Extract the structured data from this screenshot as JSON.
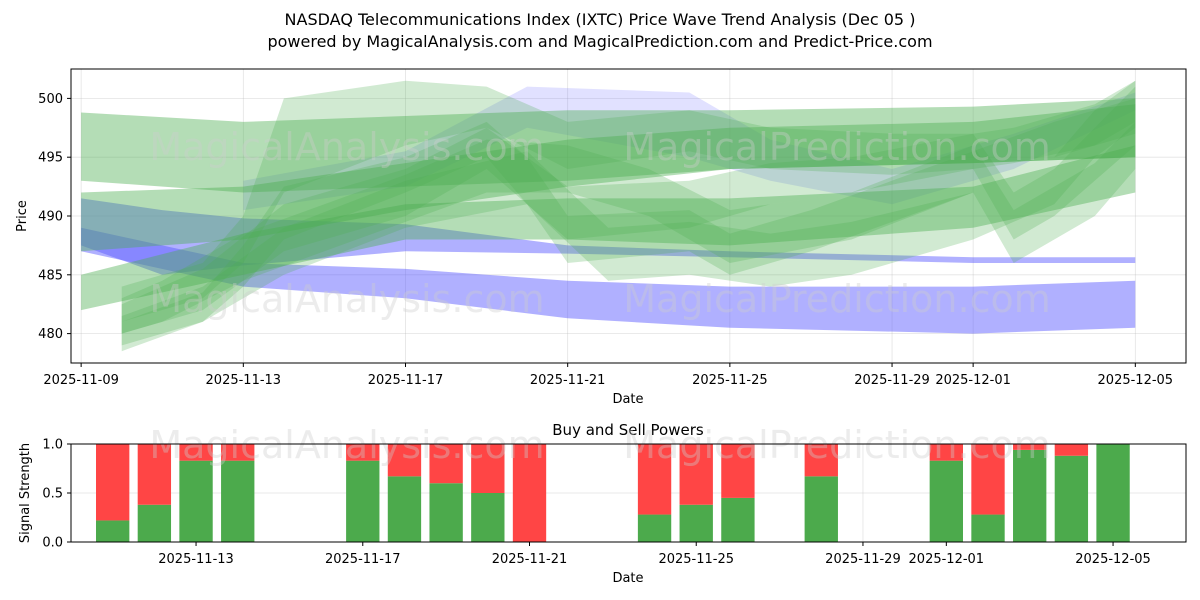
{
  "title_line1": "NASDAQ Telecommunications Index (IXTC) Price Wave Trend Analysis (Dec 05 )",
  "title_line2": "powered by MagicalAnalysis.com and MagicalPrediction.com and Predict-Price.com",
  "watermarks": [
    "MagicalAnalysis.com",
    "MagicalPrediction.com"
  ],
  "colors": {
    "green": "#4caf50",
    "red": "#ff4444",
    "blue": "#5a5aff",
    "buy": "#4caa4c",
    "sell": "#ff4545"
  },
  "chart_data": [
    {
      "type": "area",
      "title": "",
      "xlabel": "Date",
      "ylabel": "Price",
      "xlim": [
        "2025-11-08T18:00",
        "2025-12-06T06:00"
      ],
      "ylim": [
        477.5,
        502.5
      ],
      "y_ticks": [
        480,
        485,
        490,
        495,
        500
      ],
      "x_ticks": [
        "2025-11-09",
        "2025-11-13",
        "2025-11-17",
        "2025-11-21",
        "2025-11-25",
        "2025-11-29",
        "2025-12-01",
        "2025-12-05"
      ],
      "grid": true,
      "series": [
        {
          "name": "blue-band-upper",
          "color": "blue",
          "x": [
            "2025-11-09",
            "2025-11-11",
            "2025-11-13",
            "2025-11-17",
            "2025-11-21",
            "2025-11-25",
            "2025-12-01",
            "2025-12-05"
          ],
          "low": [
            487.5,
            485.0,
            485.8,
            487.0,
            486.8,
            486.5,
            486.0,
            486.0
          ],
          "high": [
            491.5,
            490.5,
            489.8,
            489.3,
            487.5,
            487.0,
            486.5,
            486.5
          ]
        },
        {
          "name": "blue-band-lower",
          "color": "blue",
          "x": [
            "2025-11-09",
            "2025-11-13",
            "2025-11-17",
            "2025-11-21",
            "2025-11-25",
            "2025-12-01",
            "2025-12-05"
          ],
          "low": [
            487.0,
            484.0,
            483.0,
            481.3,
            480.5,
            480.0,
            480.5
          ],
          "high": [
            489.0,
            486.0,
            485.5,
            484.5,
            484.0,
            484.0,
            484.5
          ]
        },
        {
          "name": "blue-band-upper-transparent",
          "color": "blue",
          "x": [
            "2025-11-13",
            "2025-11-17",
            "2025-11-20",
            "2025-11-24",
            "2025-11-26",
            "2025-11-29",
            "2025-12-02",
            "2025-12-05"
          ],
          "low": [
            490.5,
            492.5,
            497.5,
            495.0,
            493.0,
            491.0,
            494.0,
            499.0
          ],
          "high": [
            493.0,
            495.5,
            501.0,
            500.5,
            496.5,
            494.0,
            497.0,
            500.5
          ]
        },
        {
          "name": "green-band-wide-1",
          "color": "green",
          "x": [
            "2025-11-09",
            "2025-11-13",
            "2025-11-17",
            "2025-11-21",
            "2025-11-25",
            "2025-12-01",
            "2025-12-05"
          ],
          "low": [
            493.0,
            492.0,
            492.5,
            493.0,
            494.0,
            494.5,
            495.0
          ],
          "high": [
            498.8,
            498.0,
            498.5,
            499.0,
            499.0,
            499.3,
            500.0
          ]
        },
        {
          "name": "green-band-wide-2",
          "color": "green",
          "x": [
            "2025-11-09",
            "2025-11-13",
            "2025-11-17",
            "2025-11-21",
            "2025-11-25",
            "2025-12-01",
            "2025-12-05"
          ],
          "low": [
            487.0,
            488.0,
            490.5,
            492.5,
            494.0,
            494.5,
            495.0
          ],
          "high": [
            492.0,
            492.5,
            494.5,
            496.5,
            497.5,
            498.0,
            499.5
          ]
        },
        {
          "name": "green-band-wide-3",
          "color": "green",
          "x": [
            "2025-11-09",
            "2025-11-13",
            "2025-11-17",
            "2025-11-21",
            "2025-11-25",
            "2025-12-01",
            "2025-12-05"
          ],
          "low": [
            482.0,
            485.0,
            488.0,
            488.0,
            487.5,
            489.0,
            492.0
          ],
          "high": [
            485.0,
            488.5,
            491.0,
            491.5,
            491.5,
            492.5,
            496.0
          ]
        },
        {
          "name": "green-wave-1",
          "color": "green",
          "x": [
            "2025-11-10",
            "2025-11-12",
            "2025-11-13",
            "2025-11-14",
            "2025-11-17",
            "2025-11-19",
            "2025-11-20",
            "2025-11-21",
            "2025-11-24",
            "2025-11-25",
            "2025-11-27",
            "2025-12-01",
            "2025-12-03",
            "2025-12-05"
          ],
          "low": [
            479.0,
            481.0,
            484.0,
            488.0,
            492.0,
            495.0,
            491.0,
            486.0,
            487.0,
            485.0,
            487.0,
            492.0,
            495.0,
            497.0
          ],
          "high": [
            481.0,
            483.5,
            487.5,
            492.5,
            495.0,
            498.0,
            495.0,
            490.0,
            490.5,
            488.5,
            490.5,
            495.5,
            498.0,
            500.0
          ]
        },
        {
          "name": "green-wave-2",
          "color": "green",
          "x": [
            "2025-11-10",
            "2025-11-12",
            "2025-11-14",
            "2025-11-17",
            "2025-11-19",
            "2025-11-21",
            "2025-11-24",
            "2025-11-26",
            "2025-11-28",
            "2025-12-01",
            "2025-12-02",
            "2025-12-04",
            "2025-12-05"
          ],
          "low": [
            480.0,
            482.0,
            487.0,
            490.0,
            494.0,
            488.0,
            489.0,
            491.0,
            492.0,
            494.0,
            494.5,
            496.0,
            498.0
          ],
          "high": [
            482.5,
            485.5,
            491.0,
            494.0,
            497.5,
            492.5,
            493.0,
            494.5,
            495.0,
            497.0,
            497.5,
            499.5,
            501.5
          ]
        },
        {
          "name": "green-wave-3",
          "color": "green",
          "x": [
            "2025-11-10",
            "2025-11-12",
            "2025-11-13",
            "2025-11-14",
            "2025-11-17",
            "2025-11-19",
            "2025-11-21",
            "2025-11-24",
            "2025-11-26",
            "2025-11-29",
            "2025-12-01",
            "2025-12-02",
            "2025-12-03",
            "2025-12-05"
          ],
          "low": [
            481.0,
            483.0,
            486.0,
            492.0,
            496.0,
            497.5,
            494.0,
            495.5,
            494.0,
            493.5,
            494.0,
            488.0,
            490.0,
            496.0
          ],
          "high": [
            484.0,
            486.0,
            490.0,
            500.0,
            501.5,
            501.0,
            498.0,
            499.0,
            497.5,
            497.0,
            497.0,
            492.0,
            494.0,
            501.0
          ]
        },
        {
          "name": "green-wave-4",
          "color": "green",
          "x": [
            "2025-11-10",
            "2025-11-12",
            "2025-11-14",
            "2025-11-17",
            "2025-11-20",
            "2025-11-22",
            "2025-11-24",
            "2025-11-26",
            "2025-11-28",
            "2025-12-01",
            "2025-12-03",
            "2025-12-04",
            "2025-12-05"
          ],
          "low": [
            478.5,
            481.0,
            485.0,
            489.0,
            491.0,
            484.5,
            485.0,
            484.0,
            485.0,
            488.0,
            491.0,
            495.0,
            497.5
          ],
          "high": [
            481.5,
            484.0,
            489.0,
            493.0,
            495.5,
            489.0,
            489.5,
            488.5,
            489.5,
            492.0,
            495.0,
            499.0,
            501.5
          ]
        },
        {
          "name": "green-wave-5",
          "color": "green",
          "x": [
            "2025-11-10",
            "2025-11-11",
            "2025-11-13",
            "2025-11-15",
            "2025-11-17",
            "2025-11-19",
            "2025-11-21",
            "2025-11-23",
            "2025-11-25",
            "2025-11-28",
            "2025-12-01",
            "2025-12-02",
            "2025-12-04",
            "2025-12-05"
          ],
          "low": [
            480.0,
            481.0,
            484.5,
            487.0,
            489.5,
            492.0,
            492.0,
            490.0,
            486.0,
            488.0,
            492.0,
            486.0,
            490.0,
            494.0
          ],
          "high": [
            483.0,
            484.5,
            488.5,
            491.0,
            493.5,
            496.5,
            496.0,
            494.0,
            490.5,
            492.0,
            496.0,
            490.5,
            494.5,
            498.0
          ]
        }
      ]
    },
    {
      "type": "bar",
      "title": "Buy and Sell Powers",
      "xlabel": "Date",
      "ylabel": "Signal Strength",
      "xlim": [
        "2025-11-10",
        "2025-12-06T18:00"
      ],
      "ylim": [
        0,
        1.0
      ],
      "y_ticks": [
        "0.0",
        "0.5",
        "1.0"
      ],
      "x_ticks": [
        "2025-11-13",
        "2025-11-17",
        "2025-11-21",
        "2025-11-25",
        "2025-11-29",
        "2025-12-01",
        "2025-12-05"
      ],
      "grid": true,
      "categories": [
        "2025-11-11",
        "2025-11-12",
        "2025-11-13",
        "2025-11-14",
        "2025-11-17",
        "2025-11-18",
        "2025-11-19",
        "2025-11-20",
        "2025-11-21",
        "2025-11-24",
        "2025-11-25",
        "2025-11-26",
        "2025-11-28",
        "2025-12-01",
        "2025-12-02",
        "2025-12-03",
        "2025-12-04",
        "2025-12-05"
      ],
      "series": [
        {
          "name": "Buy",
          "color": "buy",
          "values": [
            0.22,
            0.38,
            0.83,
            0.83,
            0.83,
            0.67,
            0.6,
            0.5,
            0.0,
            0.28,
            0.38,
            0.45,
            0.67,
            0.83,
            0.28,
            0.94,
            0.88,
            1.0
          ]
        },
        {
          "name": "Sell",
          "color": "sell",
          "values": [
            0.78,
            0.62,
            0.17,
            0.17,
            0.17,
            0.33,
            0.4,
            0.5,
            1.0,
            0.72,
            0.62,
            0.55,
            0.33,
            0.17,
            0.72,
            0.06,
            0.12,
            0.0
          ]
        }
      ]
    }
  ]
}
